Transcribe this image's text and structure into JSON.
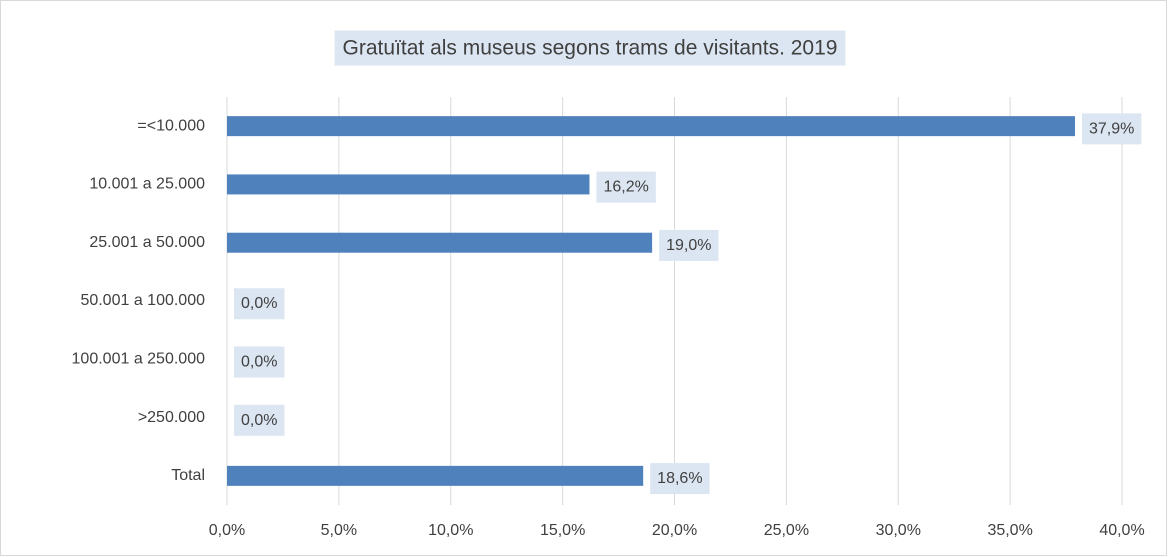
{
  "chart_data": {
    "type": "bar",
    "orientation": "horizontal",
    "title": "Gratuïtat als museus segons trams de visitants. 2019",
    "categories": [
      "=<10.000",
      "10.001 a 25.000",
      "25.001 a 50.000",
      "50.001 a 100.000",
      "100.001 a 250.000",
      ">250.000",
      "Total"
    ],
    "values": [
      37.9,
      16.2,
      19.0,
      0,
      0,
      0,
      18.6
    ],
    "value_labels": [
      "37,9%",
      "16,2%",
      "19,0%",
      "0,0%",
      "0,0%",
      "0,0%",
      "18,6%"
    ],
    "color": "#4f81bd",
    "xlim": [
      0,
      40
    ],
    "xticks": [
      {
        "value": 0,
        "label": "0,0%"
      },
      {
        "value": 5,
        "label": "5,0%"
      },
      {
        "value": 10,
        "label": "10,0%"
      },
      {
        "value": 15,
        "label": "15,0%"
      },
      {
        "value": 20,
        "label": "20,0%"
      },
      {
        "value": 25,
        "label": "25,0%"
      },
      {
        "value": 30,
        "label": "30,0%"
      },
      {
        "value": 35,
        "label": "35,0%"
      },
      {
        "value": 40,
        "label": "40,0%"
      }
    ],
    "grid": true
  }
}
